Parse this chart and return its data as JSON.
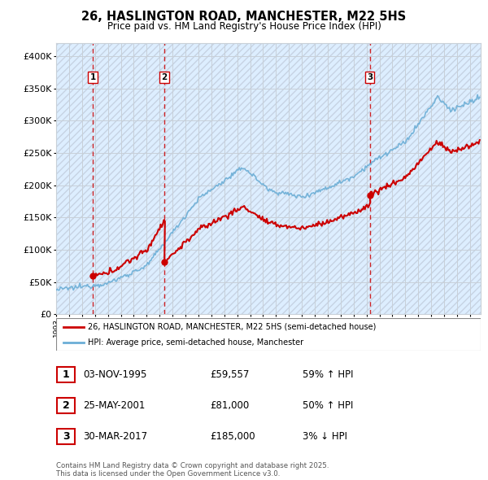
{
  "title": "26, HASLINGTON ROAD, MANCHESTER, M22 5HS",
  "subtitle": "Price paid vs. HM Land Registry's House Price Index (HPI)",
  "ylim": [
    0,
    420000
  ],
  "yticks": [
    0,
    50000,
    100000,
    150000,
    200000,
    250000,
    300000,
    350000,
    400000
  ],
  "ytick_labels": [
    "£0",
    "£50K",
    "£100K",
    "£150K",
    "£200K",
    "£250K",
    "£300K",
    "£350K",
    "£400K"
  ],
  "xlim_start": 1993.0,
  "xlim_end": 2025.83,
  "legend_line1": "26, HASLINGTON ROAD, MANCHESTER, M22 5HS (semi-detached house)",
  "legend_line2": "HPI: Average price, semi-detached house, Manchester",
  "sale1_label": "1",
  "sale1_date": "03-NOV-1995",
  "sale1_price": "£59,557",
  "sale1_hpi": "59% ↑ HPI",
  "sale1_time": 1995.833,
  "sale1_value": 59557,
  "sale2_label": "2",
  "sale2_date": "25-MAY-2001",
  "sale2_price": "£81,000",
  "sale2_hpi": "50% ↑ HPI",
  "sale2_time": 2001.375,
  "sale2_value": 81000,
  "sale3_label": "3",
  "sale3_date": "30-MAR-2017",
  "sale3_price": "£185,000",
  "sale3_hpi": "3% ↓ HPI",
  "sale3_time": 2017.25,
  "sale3_value": 185000,
  "footnote": "Contains HM Land Registry data © Crown copyright and database right 2025.\nThis data is licensed under the Open Government Licence v3.0.",
  "hpi_color": "#6baed6",
  "price_color": "#cc0000",
  "vline_color": "#cc0000",
  "bg_blue": "#ddeeff",
  "bg_hatch_color": "#b0b8c8",
  "grid_color": "#c8d0d8"
}
